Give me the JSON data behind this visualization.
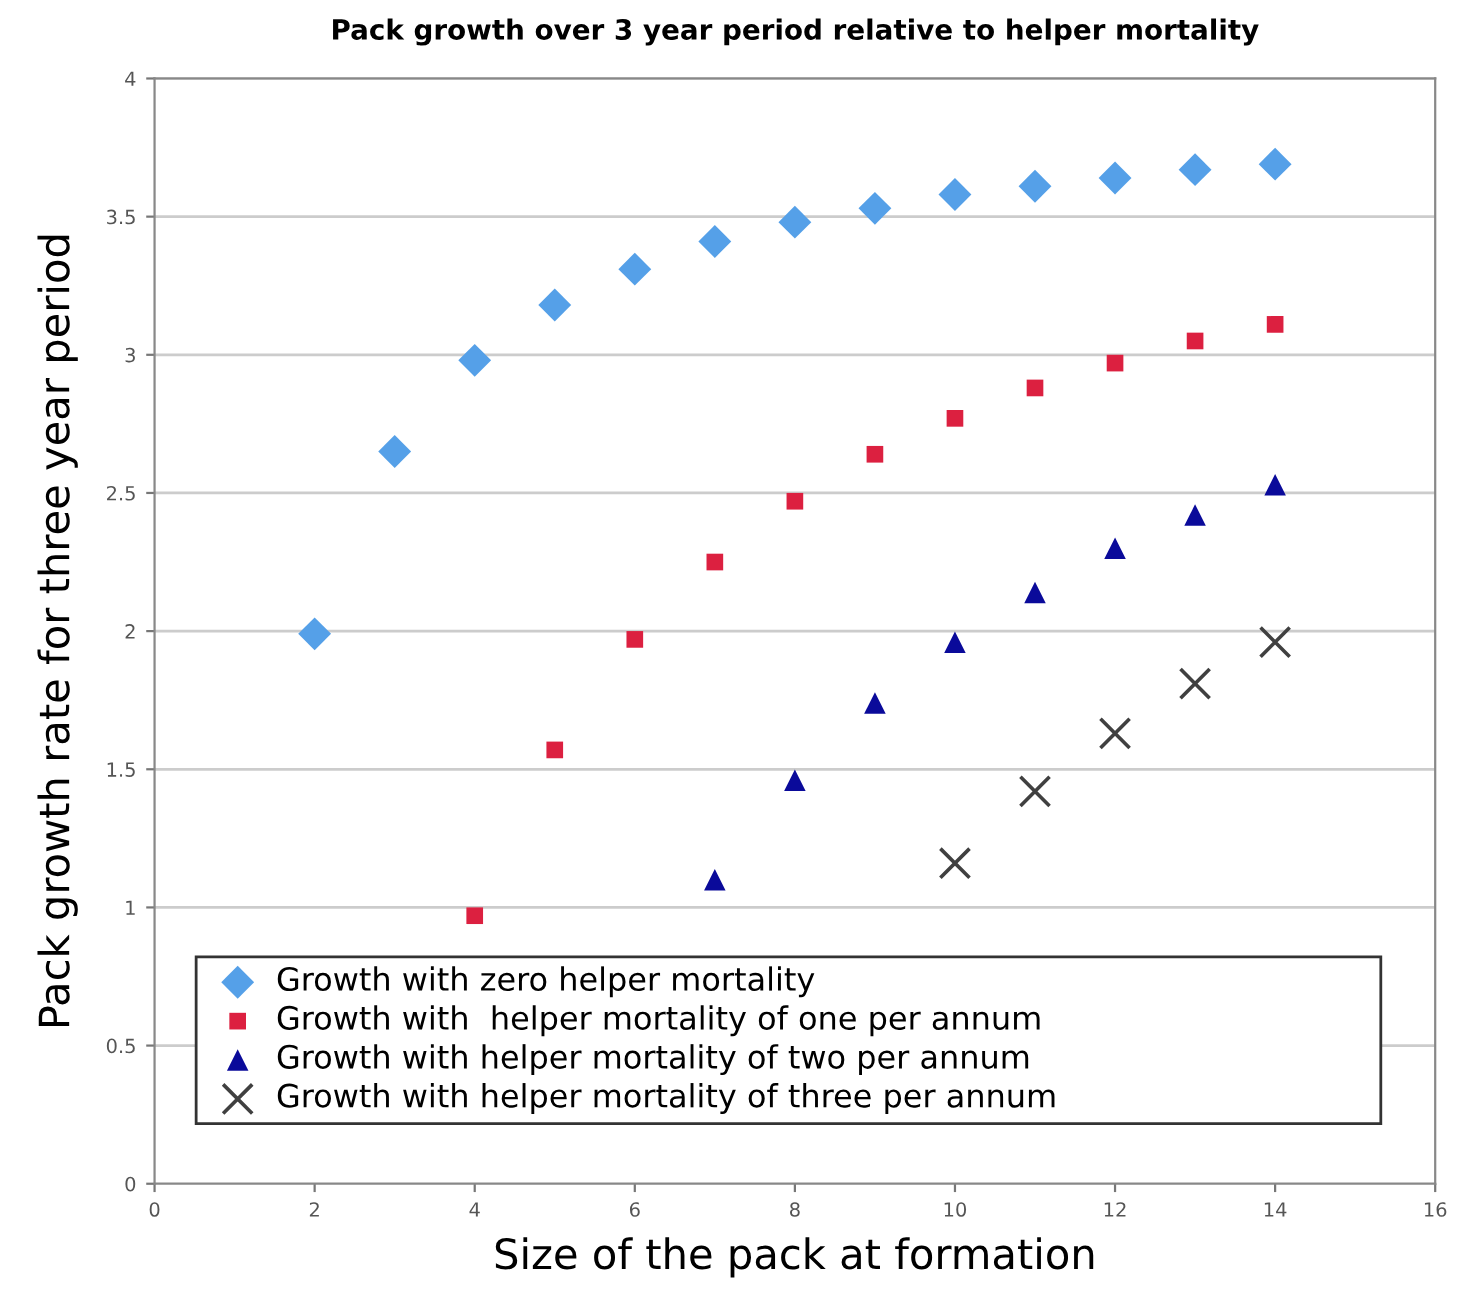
{
  "chart_data": {
    "type": "scatter",
    "title": "Pack growth over 3 year period relative to helper mortality",
    "xlabel": "Size of the pack at formation",
    "ylabel": "Pack growth rate for three year period",
    "xlim": [
      0,
      16
    ],
    "xticks": [
      0,
      2,
      4,
      6,
      8,
      10,
      12,
      14,
      16
    ],
    "ylim": [
      0,
      4
    ],
    "yticks": [
      0,
      0.5,
      1,
      1.5,
      2,
      2.5,
      3,
      3.5,
      4
    ],
    "grid": "y",
    "legend": "bottom",
    "series": [
      {
        "name": "Growth with zero helper mortality",
        "color": "#55a0e8",
        "marker": "diamond",
        "x": [
          2,
          3,
          4,
          5,
          6,
          7,
          8,
          9,
          10,
          11,
          12,
          13,
          14
        ],
        "values": [
          1.99,
          2.65,
          2.98,
          3.18,
          3.31,
          3.41,
          3.48,
          3.53,
          3.58,
          3.61,
          3.64,
          3.67,
          3.69
        ]
      },
      {
        "name": "Growth with  helper mortality of one per annum",
        "color": "#dc2040",
        "marker": "square",
        "x": [
          4,
          5,
          6,
          7,
          8,
          9,
          10,
          11,
          12,
          13,
          14
        ],
        "values": [
          0.97,
          1.57,
          1.97,
          2.25,
          2.47,
          2.64,
          2.77,
          2.88,
          2.97,
          3.05,
          3.11
        ]
      },
      {
        "name": "Growth with helper mortality of two per annum",
        "color": "#0a0a9a",
        "marker": "triangle",
        "x": [
          7,
          8,
          9,
          10,
          11,
          12,
          13,
          14
        ],
        "values": [
          1.1,
          1.46,
          1.74,
          1.96,
          2.14,
          2.3,
          2.42,
          2.53
        ]
      },
      {
        "name": "Growth with helper mortality of three per annum",
        "color": "#404040",
        "marker": "cross",
        "x": [
          10,
          11,
          12,
          13,
          14
        ],
        "values": [
          1.16,
          1.42,
          1.63,
          1.81,
          1.96
        ]
      }
    ]
  }
}
